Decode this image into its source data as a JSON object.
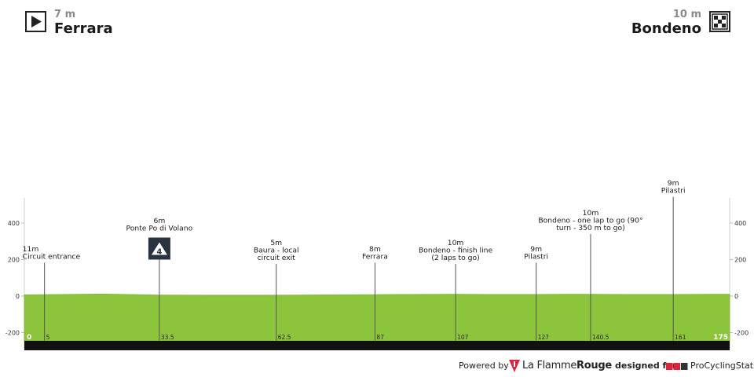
{
  "header": {
    "start": {
      "altitude": "7 m",
      "town": "Ferrara",
      "icon": "start-play-icon"
    },
    "finish": {
      "altitude": "10 m",
      "town": "Bondeno",
      "icon": "finish-flag-icon"
    }
  },
  "chart_data": {
    "type": "area",
    "title": "",
    "xlabel": "",
    "ylabel": "",
    "xlim": [
      0,
      175
    ],
    "ylim": [
      -250,
      560
    ],
    "y_ticks": [
      -200,
      0,
      200,
      400
    ],
    "grid": false,
    "fill_color": "#8cc43c",
    "distance_bar_color": "#111111",
    "profile": {
      "x": [
        0,
        10,
        20,
        33.5,
        45,
        62.5,
        75,
        87,
        95,
        107,
        115,
        127,
        135,
        140.5,
        150,
        161,
        170,
        175
      ],
      "y": [
        7,
        9,
        11,
        6,
        5,
        5,
        7,
        8,
        9,
        10,
        9,
        9,
        10,
        10,
        9,
        9,
        10,
        10
      ]
    },
    "markers": [
      {
        "km": 5,
        "km_label": "5",
        "altitude": "11m",
        "name": "Circuit entrance"
      },
      {
        "km": 33.5,
        "km_label": "33.5",
        "altitude": "6m",
        "name": "Ponte Po di Volano",
        "badge": "4"
      },
      {
        "km": 62.5,
        "km_label": "62.5",
        "altitude": "5m",
        "name": "Baura - local circuit exit"
      },
      {
        "km": 87,
        "km_label": "87",
        "altitude": "8m",
        "name": "Ferrara"
      },
      {
        "km": 107,
        "km_label": "107",
        "altitude": "10m",
        "name": "Bondeno - finish line (2 laps to go)"
      },
      {
        "km": 127,
        "km_label": "127",
        "altitude": "9m",
        "name": "Pilastri"
      },
      {
        "km": 140.5,
        "km_label": "140.5",
        "altitude": "10m",
        "name": "Bondeno - one lap to go (90° turn - 350 m to go)"
      },
      {
        "km": 161,
        "km_label": "161",
        "altitude": "9m",
        "name": "Pilastri"
      }
    ],
    "start_km_label": "0",
    "end_km_label": "175"
  },
  "footer": {
    "powered_by": "Powered by",
    "lfr_brand_light": "La Flamme",
    "lfr_brand_bold": "Rouge",
    "designed_for": "designed for",
    "pcs_brand": "ProCyclingStats"
  }
}
